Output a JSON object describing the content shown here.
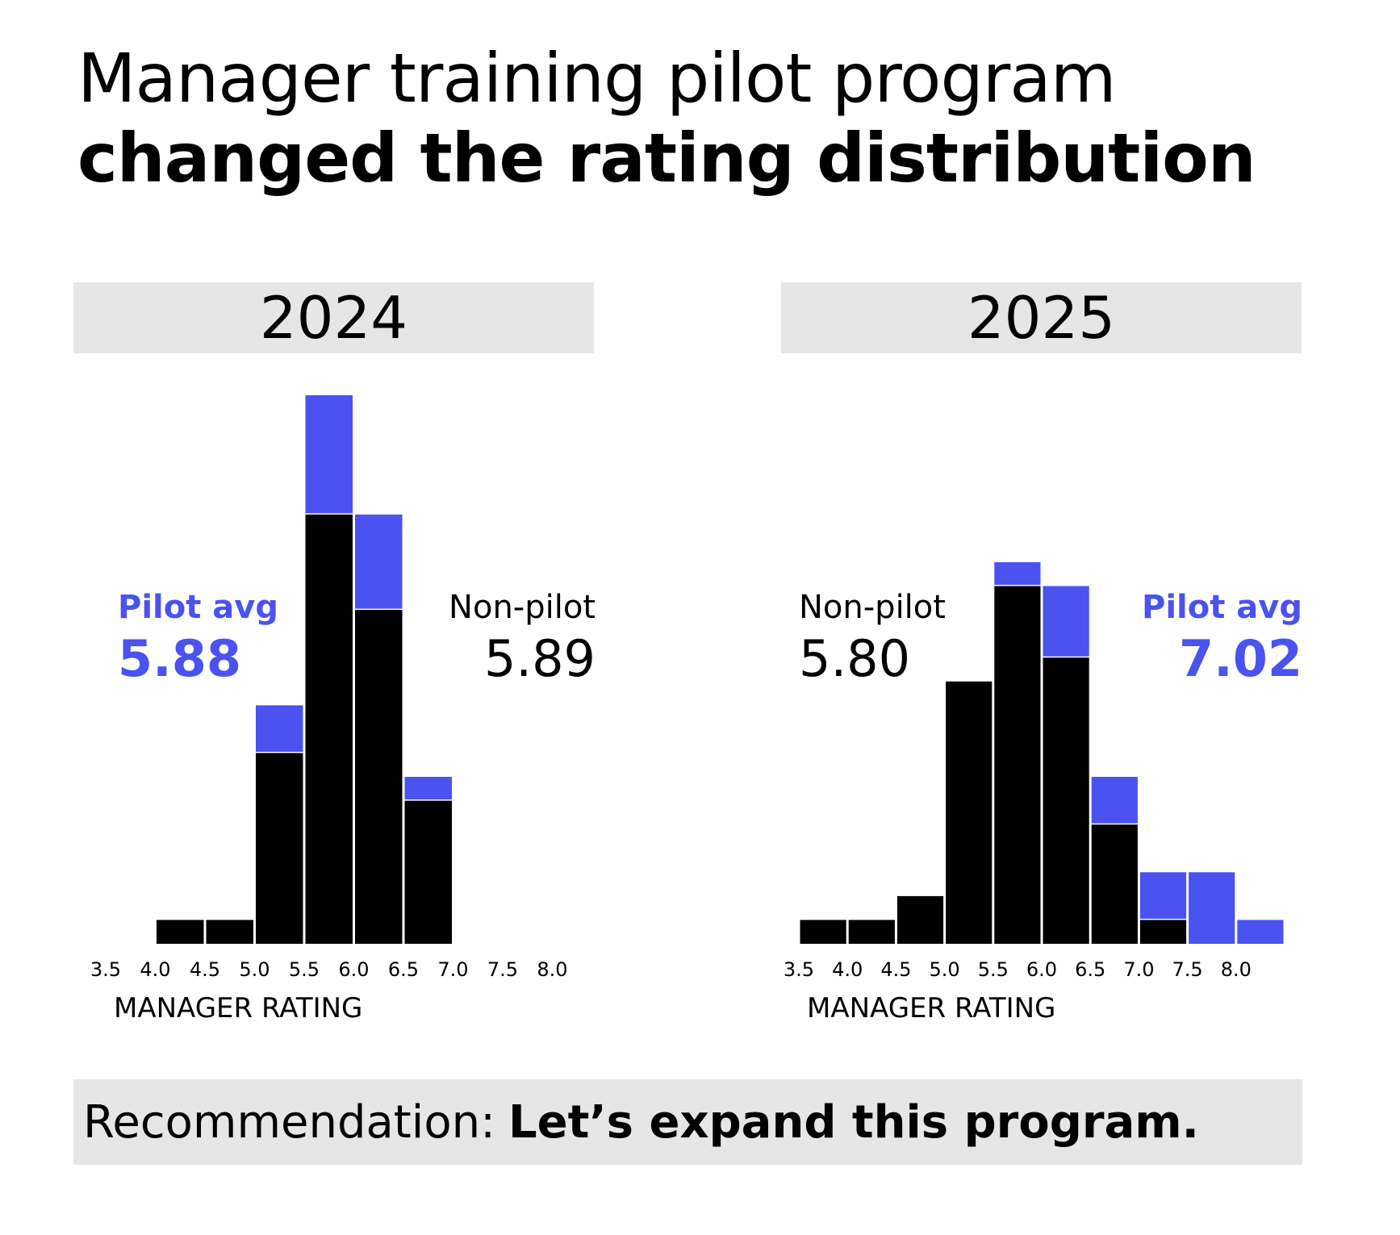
{
  "title": {
    "line1": "Manager training pilot program",
    "line2": "changed the rating distribution"
  },
  "colors": {
    "non_pilot": "#000000",
    "pilot": "#4a52f0",
    "panel_bg": "#e6e6e6"
  },
  "annotations": {
    "2024": {
      "pilot_label": "Pilot avg",
      "pilot_value": "5.88",
      "nonpilot_label": "Non-pilot",
      "nonpilot_value": "5.89"
    },
    "2025": {
      "pilot_label": "Pilot avg",
      "pilot_value": "7.02",
      "nonpilot_label": "Non-pilot",
      "nonpilot_value": "5.80"
    }
  },
  "recommendation": {
    "prefix": "Recommendation:",
    "bold": "Let’s expand this program."
  },
  "chart_data": [
    {
      "type": "bar",
      "stacked": true,
      "title": "2024",
      "xlabel": "MANAGER RATING",
      "ylabel": "",
      "ylim": [
        0,
        23
      ],
      "categories": [
        "3.5",
        "4.0",
        "4.5",
        "5.0",
        "5.5",
        "6.0",
        "6.5",
        "7.0",
        "7.5",
        "8.0"
      ],
      "series": [
        {
          "name": "Non-pilot",
          "values": [
            0,
            1,
            1,
            8,
            18,
            14,
            6,
            0,
            0,
            0
          ]
        },
        {
          "name": "Pilot",
          "values": [
            0,
            0,
            0,
            2,
            5,
            4,
            1,
            0,
            0,
            0
          ]
        }
      ]
    },
    {
      "type": "bar",
      "stacked": true,
      "title": "2025",
      "xlabel": "MANAGER RATING",
      "ylabel": "",
      "ylim": [
        0,
        23
      ],
      "categories": [
        "3.5",
        "4.0",
        "4.5",
        "5.0",
        "5.5",
        "6.0",
        "6.5",
        "7.0",
        "7.5",
        "8.0"
      ],
      "series": [
        {
          "name": "Non-pilot",
          "values": [
            1,
            1,
            2,
            11,
            15,
            12,
            5,
            1,
            0,
            0
          ]
        },
        {
          "name": "Pilot",
          "values": [
            0,
            0,
            0,
            0,
            1,
            3,
            2,
            2,
            3,
            1
          ]
        }
      ]
    }
  ]
}
